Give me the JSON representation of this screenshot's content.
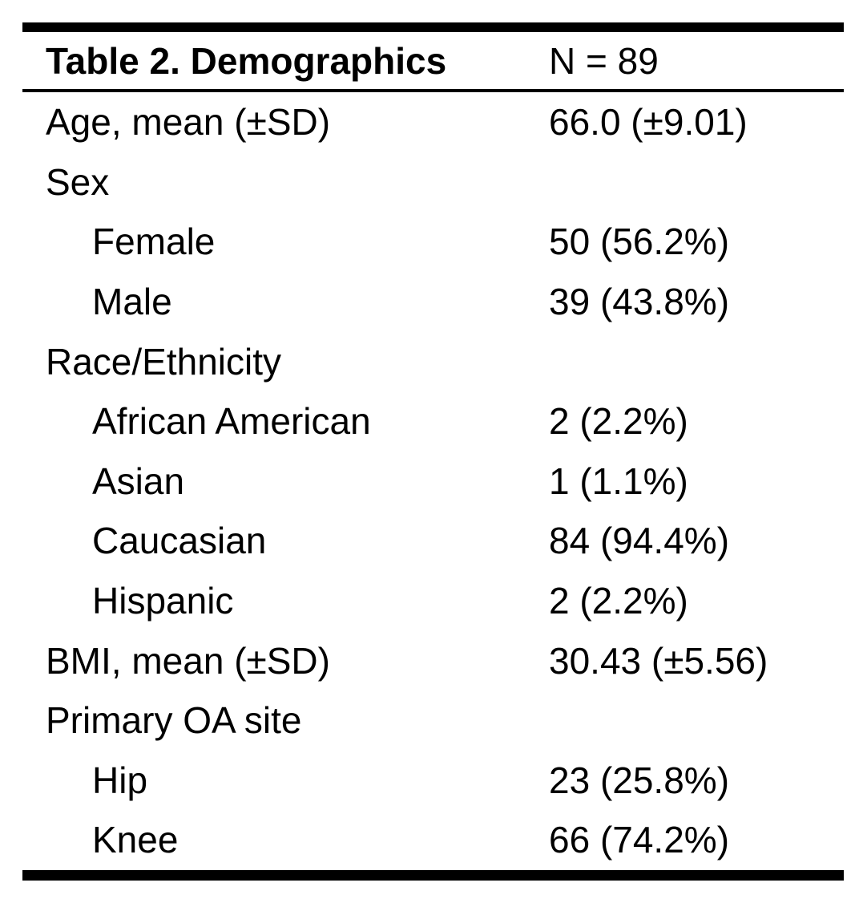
{
  "table": {
    "title": "Table 2. Demographics",
    "n_label": "N = 89",
    "rows": [
      {
        "label": "Age, mean (±SD)",
        "value": "66.0 (±9.01)",
        "indent": false
      },
      {
        "label": "Sex",
        "value": "",
        "indent": false
      },
      {
        "label": "Female",
        "value": "50 (56.2%)",
        "indent": true
      },
      {
        "label": "Male",
        "value": "39 (43.8%)",
        "indent": true
      },
      {
        "label": "Race/Ethnicity",
        "value": "",
        "indent": false
      },
      {
        "label": "African American",
        "value": "2 (2.2%)",
        "indent": true
      },
      {
        "label": "Asian",
        "value": "1 (1.1%)",
        "indent": true
      },
      {
        "label": "Caucasian",
        "value": "84 (94.4%)",
        "indent": true
      },
      {
        "label": "Hispanic",
        "value": "2 (2.2%)",
        "indent": true
      },
      {
        "label": "BMI, mean (±SD)",
        "value": "30.43 (±5.56)",
        "indent": false
      },
      {
        "label": "Primary OA site",
        "value": "",
        "indent": false
      },
      {
        "label": "Hip",
        "value": "23 (25.8%)",
        "indent": true
      },
      {
        "label": "Knee",
        "value": "66 (74.2%)",
        "indent": true
      }
    ],
    "colors": {
      "text": "#000000",
      "background": "#ffffff",
      "rule": "#000000"
    }
  }
}
